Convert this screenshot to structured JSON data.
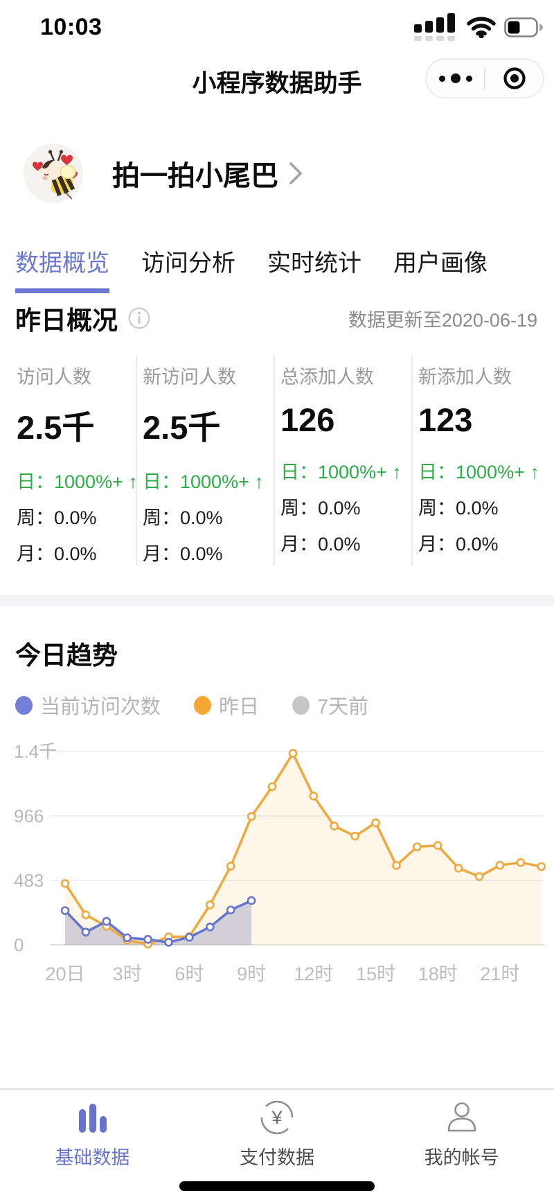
{
  "status_bar": {
    "time": "10:03"
  },
  "header": {
    "title": "小程序数据助手"
  },
  "profile": {
    "name": "拍一拍小尾巴"
  },
  "tabs": [
    {
      "key": "data-overview",
      "label": "数据概览",
      "active": true
    },
    {
      "key": "visit-analysis",
      "label": "访问分析",
      "active": false
    },
    {
      "key": "realtime-stats",
      "label": "实时统计",
      "active": false
    },
    {
      "key": "user-portrait",
      "label": "用户画像",
      "active": false
    }
  ],
  "overview": {
    "title": "昨日概况",
    "updated": "数据更新至2020-06-19",
    "stats": [
      {
        "key": "visitors",
        "label": "访问人数",
        "value": "2.5千",
        "day": "日：1000%+ ↑",
        "week": "周：0.0%",
        "month": "月：0.0%"
      },
      {
        "key": "new-visitors",
        "label": "新访问人数",
        "value": "2.5千",
        "day": "日：1000%+ ↑",
        "week": "周：0.0%",
        "month": "月：0.0%"
      },
      {
        "key": "total-added",
        "label": "总添加人数",
        "value": "126",
        "day": "日：1000%+ ↑",
        "week": "周：0.0%",
        "month": "月：0.0%"
      },
      {
        "key": "new-added",
        "label": "新添加人数",
        "value": "123",
        "day": "日：1000%+ ↑",
        "week": "周：0.0%",
        "month": "月：0.0%"
      }
    ]
  },
  "trend": {
    "title": "今日趋势",
    "legend": [
      {
        "key": "current-visits",
        "label": "当前访问次数",
        "color": "#7480d8"
      },
      {
        "key": "yesterday",
        "label": "昨日",
        "color": "#f5a832"
      },
      {
        "key": "seven-days-ago",
        "label": "7天前",
        "color": "#c6c6c6"
      }
    ]
  },
  "chart_data": {
    "type": "line",
    "title": "今日趋势",
    "n_points": 24,
    "grid": true,
    "legend_position": "top-left",
    "ylim": [
      0,
      1449
    ],
    "y_ticks": [
      {
        "value": 0,
        "label": "0"
      },
      {
        "value": 483,
        "label": "483"
      },
      {
        "value": 966,
        "label": "966"
      },
      {
        "value": 1449,
        "label": "1.4千"
      }
    ],
    "x_tick_labels": [
      {
        "index": 0,
        "label": "20日"
      },
      {
        "index": 3,
        "label": "3时"
      },
      {
        "index": 6,
        "label": "6时"
      },
      {
        "index": 9,
        "label": "9时"
      },
      {
        "index": 12,
        "label": "12时"
      },
      {
        "index": 15,
        "label": "15时"
      },
      {
        "index": 18,
        "label": "18时"
      },
      {
        "index": 21,
        "label": "21时"
      }
    ],
    "series": [
      {
        "name": "当前访问次数",
        "color": "#6674cf",
        "fill": "rgba(108,118,172,0.30)",
        "visible": true,
        "values": [
          257,
          96,
          176,
          53,
          41,
          19,
          57,
          134,
          261,
          332
        ]
      },
      {
        "name": "昨日",
        "color": "#f0a83c",
        "fill": "rgba(243,178,63,0.12)",
        "visible": true,
        "values": [
          460,
          225,
          140,
          35,
          5,
          60,
          62,
          300,
          590,
          962,
          1185,
          1435,
          1115,
          890,
          815,
          915,
          595,
          735,
          745,
          575,
          512,
          596,
          617,
          587
        ]
      },
      {
        "name": "7天前",
        "color": "#c6c6c6",
        "fill": "none",
        "visible": false,
        "values": []
      }
    ]
  },
  "tab_bar": [
    {
      "key": "basic-data",
      "label": "基础数据",
      "icon": "bar-chart-icon",
      "active": true
    },
    {
      "key": "payment-data",
      "label": "支付数据",
      "icon": "yen-circle-icon",
      "active": false
    },
    {
      "key": "my-account",
      "label": "我的帐号",
      "icon": "person-icon",
      "active": false
    }
  ]
}
